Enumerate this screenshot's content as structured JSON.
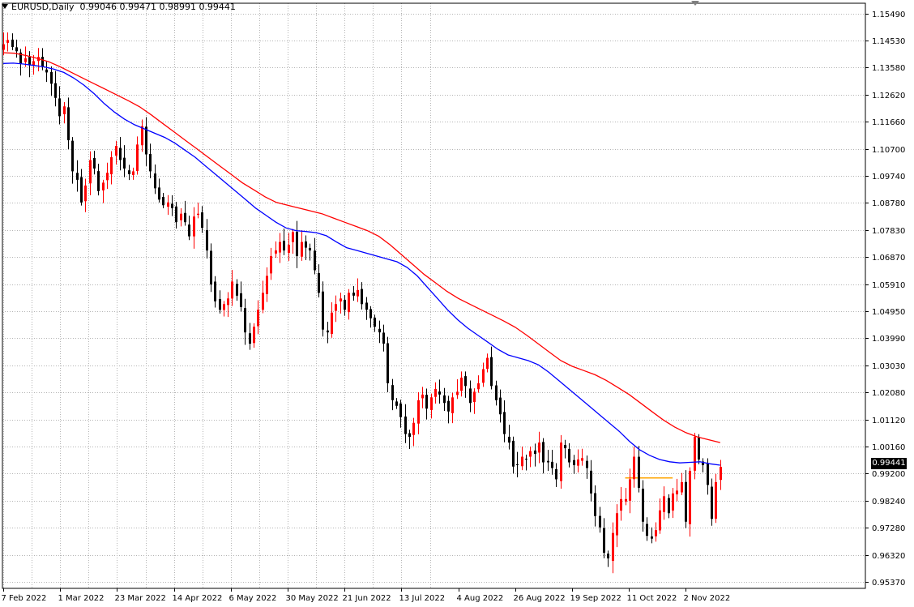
{
  "header": {
    "symbol": "EURUSD",
    "timeframe": "Daily",
    "title": "EURUSD,Daily",
    "ohlc": "0.99046 0.99471 0.98991 0.99441"
  },
  "current_price_label": "0.99441",
  "colors": {
    "grid": "#b4b4b4",
    "bull": "#ff0000",
    "bear": "#000000",
    "ma_fast": "#0000ff",
    "ma_slow": "#ff0000",
    "level": "#ffa500",
    "axis": "#000000"
  },
  "chart_data": {
    "type": "candlestick",
    "symbol": "EURUSD",
    "timeframe": "Daily",
    "y_tick_labels": [
      "1.15490",
      "1.14530",
      "1.13580",
      "1.12620",
      "1.11660",
      "1.10700",
      "1.09740",
      "1.08780",
      "1.07830",
      "1.06870",
      "1.05910",
      "1.04950",
      "1.03990",
      "1.03030",
      "1.02080",
      "1.01120",
      "1.00160",
      "0.99200",
      "0.98240",
      "0.97280",
      "0.96320",
      "0.95370"
    ],
    "y_ticks": [
      1.1549,
      1.1453,
      1.1358,
      1.1262,
      1.1166,
      1.107,
      1.0974,
      1.0878,
      1.0783,
      1.0687,
      1.0591,
      1.0495,
      1.0399,
      1.0303,
      1.0208,
      1.0112,
      1.0016,
      0.992,
      0.9824,
      0.9728,
      0.9632,
      0.9537
    ],
    "ylim": [
      0.9514,
      1.1585
    ],
    "x_tick_labels": [
      "7 Feb 2022",
      "1 Mar 2022",
      "23 Mar 2022",
      "14 Apr 2022",
      "6 May 2022",
      "30 May 2022",
      "21 Jun 2022",
      "13 Jul 2022",
      "4 Aug 2022",
      "26 Aug 2022",
      "19 Sep 2022",
      "11 Oct 2022",
      "2 Nov 2022"
    ],
    "bars_per_tick": 16,
    "levels": [
      {
        "price": 0.9905,
        "from_bar": 144,
        "to_bar": 155
      }
    ],
    "closes": [
      1.144,
      1.1455,
      1.143,
      1.1415,
      1.137,
      1.139,
      1.1365,
      1.138,
      1.1395,
      1.136,
      1.134,
      1.13,
      1.125,
      1.1185,
      1.122,
      1.11,
      1.099,
      1.096,
      1.088,
      1.094,
      1.103,
      1.1,
      1.092,
      1.095,
      1.0985,
      1.104,
      1.108,
      1.103,
      1.1,
      1.098,
      1.099,
      1.1085,
      1.115,
      1.105,
      1.099,
      1.093,
      1.089,
      1.087,
      1.088,
      1.086,
      1.081,
      1.084,
      1.081,
      1.076,
      1.083,
      1.084,
      1.079,
      1.071,
      1.059,
      1.053,
      1.05,
      1.052,
      1.054,
      1.06,
      1.055,
      1.051,
      1.042,
      1.038,
      1.044,
      1.05,
      1.056,
      1.062,
      1.069,
      1.071,
      1.074,
      1.071,
      1.073,
      1.0775,
      1.069,
      1.074,
      1.072,
      1.071,
      1.064,
      1.056,
      1.043,
      1.042,
      1.049,
      1.052,
      1.054,
      1.05,
      1.056,
      1.055,
      1.057,
      1.052,
      1.05,
      1.047,
      1.044,
      1.042,
      1.038,
      1.024,
      1.018,
      1.016,
      1.012,
      1.006,
      1.005,
      1.01,
      1.018,
      1.02,
      1.015,
      1.019,
      1.022,
      1.02,
      1.017,
      1.014,
      1.019,
      1.021,
      1.026,
      1.023,
      1.017,
      1.021,
      1.024,
      1.029,
      1.033,
      1.023,
      1.018,
      1.013,
      1.006,
      1.003,
      0.9945,
      0.995,
      0.998,
      0.997,
      1.0,
      0.999,
      1.003,
      0.996,
      0.996,
      0.994,
      0.99,
      1.003,
      1.001,
      0.996,
      0.995,
      0.997,
      0.9975,
      0.994,
      0.985,
      0.977,
      0.973,
      0.964,
      0.962,
      0.971,
      0.978,
      0.983,
      0.983,
      0.99,
      0.998,
      0.987,
      0.975,
      0.97,
      0.969,
      0.972,
      0.979,
      0.984,
      0.978,
      0.985,
      0.986,
      0.989,
      0.975,
      0.993,
      1.005,
      0.997,
      0.995,
      0.988,
      0.976,
      0.989,
      0.9944
    ],
    "ma_fast": [
      1.1372,
      1.1373,
      1.137,
      1.1365,
      1.136,
      1.1352,
      1.134,
      1.132,
      1.1295,
      1.1265,
      1.123,
      1.12,
      1.1175,
      1.1155,
      1.114,
      1.1125,
      1.111,
      1.109,
      1.1065,
      1.104,
      1.101,
      1.098,
      1.095,
      1.092,
      1.089,
      1.086,
      1.0835,
      1.081,
      1.079,
      1.078,
      1.0777,
      1.0773,
      1.0762,
      1.074,
      1.072,
      1.071,
      1.07,
      1.069,
      1.068,
      1.067,
      1.065,
      1.062,
      1.058,
      1.054,
      1.05,
      1.0465,
      1.0435,
      1.041,
      1.0385,
      1.036,
      1.034,
      1.033,
      1.032,
      1.0305,
      1.028,
      1.025,
      1.022,
      1.019,
      1.016,
      1.013,
      1.01,
      1.007,
      1.0035,
      1.0005,
      0.9985,
      0.997,
      0.9962,
      0.9958,
      0.996,
      0.9962,
      0.9955,
      0.995
    ],
    "ma_slow": [
      1.141,
      1.1408,
      1.14,
      1.139,
      1.1378,
      1.136,
      1.134,
      1.132,
      1.13,
      1.128,
      1.126,
      1.124,
      1.1218,
      1.119,
      1.116,
      1.113,
      1.11,
      1.107,
      1.104,
      1.101,
      1.098,
      1.095,
      1.0925,
      1.09,
      1.088,
      1.087,
      1.086,
      1.085,
      1.084,
      1.0825,
      1.081,
      1.0795,
      1.078,
      1.076,
      1.073,
      1.0695,
      1.066,
      1.0625,
      1.0595,
      1.0565,
      1.054,
      1.052,
      1.05,
      1.048,
      1.046,
      1.0438,
      1.041,
      1.038,
      1.035,
      1.032,
      1.03,
      1.0285,
      1.027,
      1.025,
      1.0225,
      1.02,
      1.017,
      1.014,
      1.011,
      1.0085,
      1.0065,
      1.005,
      1.004,
      1.003
    ]
  }
}
